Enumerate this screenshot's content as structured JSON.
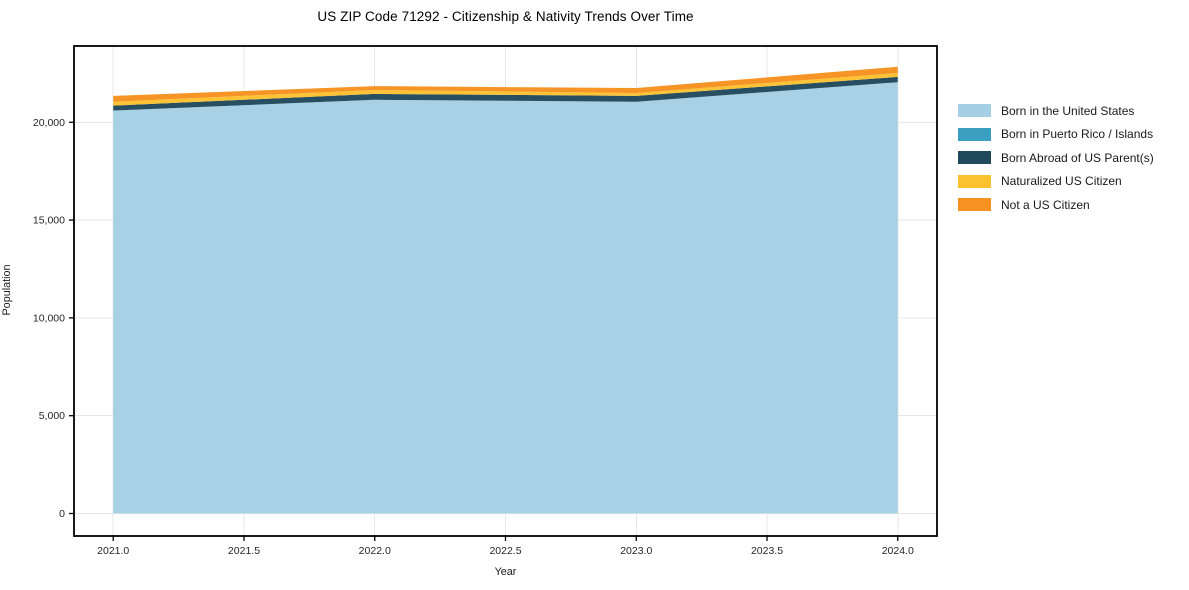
{
  "chart_data": {
    "type": "area",
    "stacked": true,
    "title": "US ZIP Code 71292 - Citizenship & Nativity Trends Over Time",
    "xlabel": "Year",
    "ylabel": "Population",
    "x": [
      2021,
      2022,
      2023,
      2024
    ],
    "series": [
      {
        "name": "Born in the United States",
        "color": "#a5cfe4",
        "values": [
          20600,
          21150,
          21050,
          22050
        ]
      },
      {
        "name": "Born in Puerto Rico / Islands",
        "color": "#3b9fc1",
        "values": [
          0,
          0,
          0,
          0
        ]
      },
      {
        "name": "Born Abroad of US Parent(s)",
        "color": "#20495c",
        "values": [
          250,
          300,
          300,
          270
        ]
      },
      {
        "name": "Naturalized US Citizen",
        "color": "#fcc12f",
        "values": [
          200,
          200,
          150,
          200
        ]
      },
      {
        "name": "Not a US Citizen",
        "color": "#f6921f",
        "values": [
          300,
          200,
          250,
          320
        ]
      }
    ],
    "xlim": [
      2020.85,
      2024.15
    ],
    "ylim": [
      -1150,
      23900
    ],
    "xticks": [
      2021.0,
      2021.5,
      2022.0,
      2022.5,
      2023.0,
      2023.5,
      2024.0
    ],
    "xtick_labels": [
      "2021.0",
      "2021.5",
      "2022.0",
      "2022.5",
      "2023.0",
      "2023.5",
      "2024.0"
    ],
    "yticks": [
      0,
      5000,
      10000,
      15000,
      20000
    ],
    "ytick_labels": [
      "0",
      "5,000",
      "10,000",
      "15,000",
      "20,000"
    ],
    "grid": true,
    "grid_color": "#e7e7e7",
    "spine_color": "#000000",
    "tick_label_color": "#262626",
    "legend_position": "outside-right-top"
  }
}
